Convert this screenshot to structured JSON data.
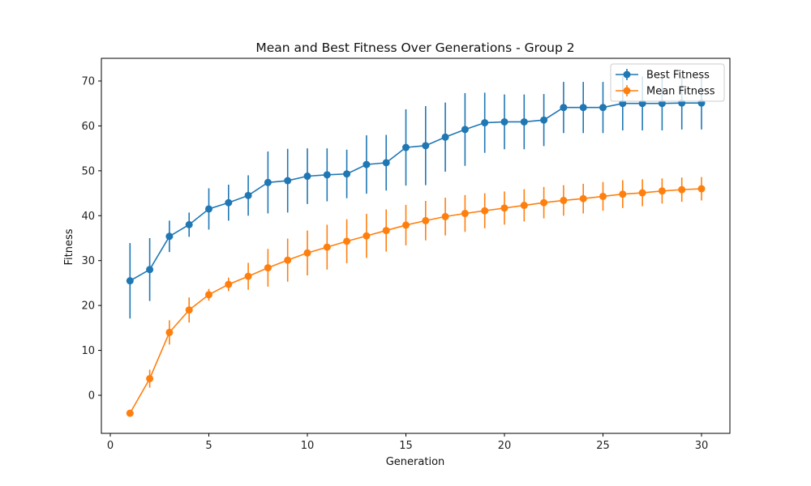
{
  "chart_data": {
    "type": "line",
    "title": "Mean and Best Fitness Over Generations - Group 2",
    "xlabel": "Generation",
    "ylabel": "Fitness",
    "xlim": [
      0.0,
      30.0
    ],
    "ylim": [
      -5.0,
      75.0
    ],
    "x_ticks": [
      0,
      5,
      10,
      15,
      20,
      25,
      30
    ],
    "y_ticks": [
      0,
      10,
      20,
      30,
      40,
      50,
      60,
      70
    ],
    "grid": false,
    "legend_position": "top-right",
    "x": [
      1,
      2,
      3,
      4,
      5,
      6,
      7,
      8,
      9,
      10,
      11,
      12,
      13,
      14,
      15,
      16,
      17,
      18,
      19,
      20,
      21,
      22,
      23,
      24,
      25,
      26,
      27,
      28,
      29,
      30
    ],
    "series": [
      {
        "name": "Best Fitness",
        "color": "#1f77b4",
        "values": [
          25.5,
          28.0,
          35.4,
          38.0,
          41.5,
          42.9,
          44.5,
          47.4,
          47.8,
          48.8,
          49.1,
          49.3,
          51.4,
          51.8,
          55.2,
          55.6,
          57.5,
          59.2,
          60.7,
          60.9,
          60.9,
          61.3,
          64.1,
          64.1,
          64.1,
          65.0,
          65.0,
          65.0,
          65.1,
          65.1
        ],
        "error": [
          8.4,
          7.0,
          3.5,
          2.7,
          4.6,
          4.0,
          4.5,
          6.9,
          7.1,
          6.2,
          5.9,
          5.4,
          6.5,
          6.2,
          8.5,
          8.8,
          7.7,
          8.1,
          6.7,
          6.1,
          6.1,
          5.8,
          5.7,
          5.7,
          5.7,
          6.0,
          6.0,
          6.0,
          5.9,
          5.9
        ]
      },
      {
        "name": "Mean Fitness",
        "color": "#ff7f0e",
        "values": [
          -4.0,
          3.7,
          14.0,
          19.0,
          22.4,
          24.7,
          26.5,
          28.4,
          30.1,
          31.7,
          33.0,
          34.3,
          35.5,
          36.7,
          37.9,
          38.9,
          39.8,
          40.5,
          41.1,
          41.7,
          42.3,
          42.9,
          43.4,
          43.8,
          44.3,
          44.8,
          45.1,
          45.5,
          45.8,
          46.0
        ],
        "error": [
          0.3,
          2.0,
          2.7,
          2.8,
          1.3,
          1.5,
          3.0,
          4.2,
          4.8,
          5.0,
          5.0,
          4.9,
          4.9,
          4.7,
          4.5,
          4.4,
          4.2,
          4.1,
          3.9,
          3.7,
          3.6,
          3.5,
          3.4,
          3.3,
          3.2,
          3.1,
          3.0,
          2.8,
          2.7,
          2.6
        ]
      }
    ]
  }
}
